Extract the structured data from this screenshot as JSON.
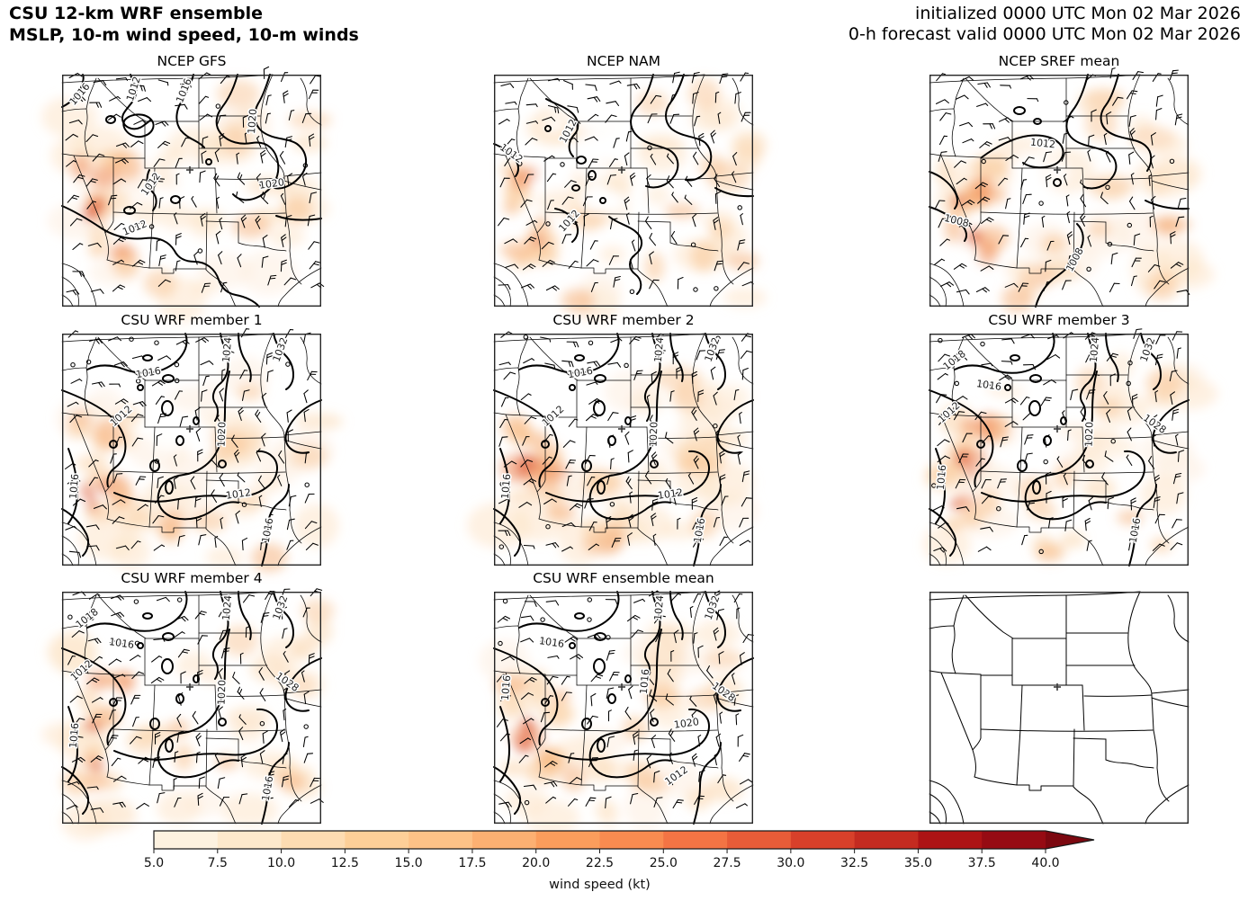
{
  "header": {
    "title_line1": "CSU 12-km WRF ensemble",
    "title_line2": "MSLP, 10-m wind speed, 10-m winds",
    "initialized": "initialized 0000 UTC Mon 02 Mar 2026",
    "valid": "0-h forecast valid 0000 UTC Mon 02 Mar 2026"
  },
  "panels": [
    {
      "id": "ncep-gfs",
      "title": "NCEP GFS",
      "style": "gfs",
      "isobar_labels": [
        "1016",
        "1012",
        "1016",
        "1020",
        "1020",
        "1012",
        "1012"
      ]
    },
    {
      "id": "ncep-nam",
      "title": "NCEP NAM",
      "style": "nam",
      "isobar_labels": [
        "1012",
        "1012",
        "1012"
      ]
    },
    {
      "id": "ncep-sref-mean",
      "title": "NCEP SREF mean",
      "style": "sref",
      "isobar_labels": [
        "1012",
        "1008",
        "1008"
      ]
    },
    {
      "id": "csu-wrf-member-1",
      "title": "CSU WRF member 1",
      "style": "wrfA",
      "isobar_labels": [
        "1016",
        "1024",
        "1032",
        "1012",
        "1020",
        "1012",
        "1016",
        "1016"
      ]
    },
    {
      "id": "csu-wrf-member-2",
      "title": "CSU WRF member 2",
      "style": "wrfA",
      "isobar_labels": [
        "1016",
        "1024",
        "1032",
        "1012",
        "1020",
        "1012",
        "1016",
        "1016"
      ]
    },
    {
      "id": "csu-wrf-member-3",
      "title": "CSU WRF member 3",
      "style": "wrfB",
      "isobar_labels": [
        "1018",
        "1016",
        "1012",
        "1024",
        "1032",
        "1020",
        "1028",
        "1016",
        "1016"
      ]
    },
    {
      "id": "csu-wrf-member-4",
      "title": "CSU WRF member 4",
      "style": "wrfB",
      "isobar_labels": [
        "1018",
        "1016",
        "1012",
        "1024",
        "1032",
        "1020",
        "1028",
        "1016",
        "1016"
      ]
    },
    {
      "id": "csu-wrf-ensemble-mean",
      "title": "CSU WRF ensemble mean",
      "style": "wrfM",
      "isobar_labels": [
        "1016",
        "1024",
        "1032",
        "1016",
        "1020",
        "1028",
        "1012",
        "1016"
      ]
    },
    {
      "id": "reference-map",
      "title": "",
      "style": "blank",
      "isobar_labels": []
    }
  ],
  "station_marker": "+",
  "colorbar": {
    "label": "wind speed (kt)",
    "ticks": [
      "5.0",
      "7.5",
      "10.0",
      "12.5",
      "15.0",
      "17.5",
      "20.0",
      "22.5",
      "25.0",
      "27.5",
      "30.0",
      "32.5",
      "35.0",
      "37.5",
      "40.0"
    ],
    "segment_colors": [
      "#fdf2e0",
      "#fde9cc",
      "#fddcb2",
      "#fdcf98",
      "#fdc287",
      "#fcb072",
      "#fb9d5c",
      "#f98b50",
      "#f47444",
      "#e85c38",
      "#d8402a",
      "#c42b20",
      "#ad1315",
      "#960b13"
    ],
    "arrow_color": "#7c0810",
    "extend": "max"
  },
  "chart_data": {
    "type": "heatmap",
    "title": "CSU 12-km WRF ensemble — MSLP, 10-m wind speed, 10-m winds",
    "initialized": "0000 UTC Mon 02 Mar 2026",
    "valid": "0000 UTC Mon 02 Mar 2026",
    "forecast_hour": 0,
    "layout": {
      "rows": 3,
      "cols": 3,
      "legend_position": "bottom"
    },
    "panels": [
      {
        "title": "NCEP GFS",
        "mslp_contour_labels_hpa": [
          1016,
          1012,
          1016,
          1020,
          1020,
          1012,
          1012
        ]
      },
      {
        "title": "NCEP NAM",
        "mslp_contour_labels_hpa": [
          1012,
          1012,
          1012
        ]
      },
      {
        "title": "NCEP SREF mean",
        "mslp_contour_labels_hpa": [
          1012,
          1008,
          1008
        ]
      },
      {
        "title": "CSU WRF member 1",
        "mslp_contour_labels_hpa": [
          1016,
          1024,
          1032,
          1012,
          1020,
          1012,
          1016,
          1016
        ]
      },
      {
        "title": "CSU WRF member 2",
        "mslp_contour_labels_hpa": [
          1016,
          1024,
          1032,
          1012,
          1020,
          1012,
          1016,
          1016
        ]
      },
      {
        "title": "CSU WRF member 3",
        "mslp_contour_labels_hpa": [
          1018,
          1016,
          1012,
          1024,
          1032,
          1020,
          1028,
          1016,
          1016
        ]
      },
      {
        "title": "CSU WRF member 4",
        "mslp_contour_labels_hpa": [
          1018,
          1016,
          1012,
          1024,
          1032,
          1020,
          1028,
          1016,
          1016
        ]
      },
      {
        "title": "CSU WRF ensemble mean",
        "mslp_contour_labels_hpa": [
          1016,
          1024,
          1032,
          1016,
          1020,
          1028,
          1012,
          1016
        ]
      },
      {
        "title": "",
        "note": "blank reference map with state borders and station marker",
        "mslp_contour_labels_hpa": []
      }
    ],
    "colorbar": {
      "label": "wind speed (kt)",
      "units": "kt",
      "min": 5.0,
      "max": 40.0,
      "interval": 2.5,
      "extend": "max"
    }
  }
}
